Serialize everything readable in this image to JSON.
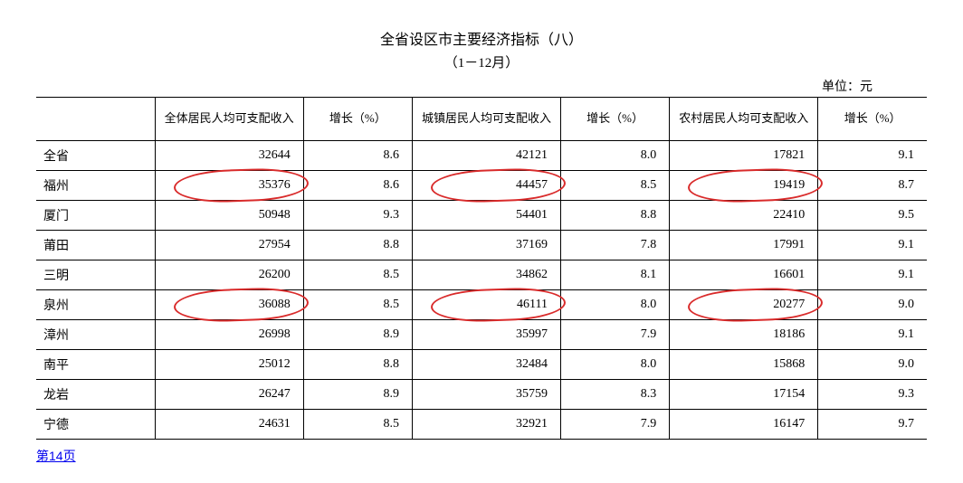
{
  "title": "全省设区市主要经济指标（八）",
  "subtitle": "（1－12月）",
  "unit_label": "单位：元",
  "columns": [
    "",
    "全体居民人均可支配收入",
    "增长（%）",
    "城镇居民人均可支配收入",
    "增长（%）",
    "农村居民人均可支配收入",
    "增长（%）"
  ],
  "col_widths": [
    "120px",
    "150px",
    "110px",
    "150px",
    "110px",
    "150px",
    "110px"
  ],
  "rows": [
    {
      "label": "全省",
      "v": [
        32644,
        8.6,
        42121,
        8.0,
        17821,
        9.1
      ]
    },
    {
      "label": "福州",
      "v": [
        35376,
        8.6,
        44457,
        8.5,
        19419,
        8.7
      ],
      "circle": [
        0,
        2,
        4
      ]
    },
    {
      "label": "厦门",
      "v": [
        50948,
        9.3,
        54401,
        8.8,
        22410,
        9.5
      ]
    },
    {
      "label": "莆田",
      "v": [
        27954,
        8.8,
        37169,
        7.8,
        17991,
        9.1
      ]
    },
    {
      "label": "三明",
      "v": [
        26200,
        8.5,
        34862,
        8.1,
        16601,
        9.1
      ]
    },
    {
      "label": "泉州",
      "v": [
        36088,
        8.5,
        46111,
        8.0,
        20277,
        9.0
      ],
      "circle": [
        0,
        2,
        4
      ]
    },
    {
      "label": "漳州",
      "v": [
        26998,
        8.9,
        35997,
        7.9,
        18186,
        9.1
      ]
    },
    {
      "label": "南平",
      "v": [
        25012,
        8.8,
        32484,
        8.0,
        15868,
        9.0
      ]
    },
    {
      "label": "龙岩",
      "v": [
        26247,
        8.9,
        35759,
        8.3,
        17154,
        9.3
      ]
    },
    {
      "label": "宁德",
      "v": [
        24631,
        8.5,
        32921,
        7.9,
        16147,
        9.7
      ]
    }
  ],
  "footer_link_text": "第14页",
  "circle_color": "#d92b2b",
  "circle_border_width": 2.5
}
